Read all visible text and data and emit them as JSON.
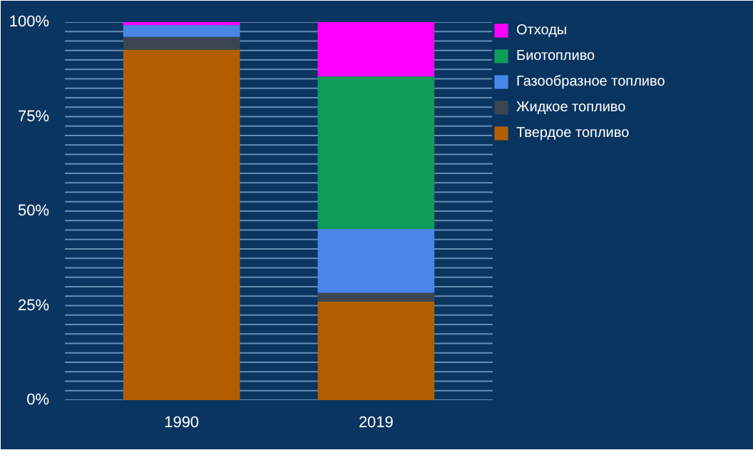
{
  "chart_data": {
    "type": "bar",
    "stacked": true,
    "categories": [
      "1990",
      "2019"
    ],
    "series": [
      {
        "name": "Твердое топливо",
        "color": "#b35f00",
        "values": [
          92.7,
          26.1
        ]
      },
      {
        "name": "Жидкое топливо",
        "color": "#3c4650",
        "values": [
          3.4,
          2.3
        ]
      },
      {
        "name": "Газообразное топливо",
        "color": "#4a86e8",
        "values": [
          3.1,
          16.9
        ]
      },
      {
        "name": "Биотопливо",
        "color": "#0f9d58",
        "values": [
          0,
          40.3
        ]
      },
      {
        "name": "Отходы",
        "color": "#ff00ff",
        "values": [
          0.8,
          14.4
        ]
      }
    ],
    "ylim": [
      0,
      100
    ],
    "yticks": [
      {
        "value": 0,
        "label": "0%"
      },
      {
        "value": 2.5,
        "label": null
      },
      {
        "value": 5,
        "label": null
      },
      {
        "value": 7.5,
        "label": null
      },
      {
        "value": 10,
        "label": null
      },
      {
        "value": 12.5,
        "label": null
      },
      {
        "value": 15,
        "label": null
      },
      {
        "value": 17.5,
        "label": null
      },
      {
        "value": 20,
        "label": null
      },
      {
        "value": 22.5,
        "label": null
      },
      {
        "value": 25,
        "label": "25%"
      },
      {
        "value": 27.5,
        "label": null
      },
      {
        "value": 30,
        "label": null
      },
      {
        "value": 32.5,
        "label": null
      },
      {
        "value": 35,
        "label": null
      },
      {
        "value": 37.5,
        "label": null
      },
      {
        "value": 40,
        "label": null
      },
      {
        "value": 42.5,
        "label": null
      },
      {
        "value": 45,
        "label": null
      },
      {
        "value": 47.5,
        "label": null
      },
      {
        "value": 50,
        "label": "50%"
      },
      {
        "value": 52.5,
        "label": null
      },
      {
        "value": 55,
        "label": null
      },
      {
        "value": 57.5,
        "label": null
      },
      {
        "value": 60,
        "label": null
      },
      {
        "value": 62.5,
        "label": null
      },
      {
        "value": 65,
        "label": null
      },
      {
        "value": 67.5,
        "label": null
      },
      {
        "value": 70,
        "label": null
      },
      {
        "value": 72.5,
        "label": null
      },
      {
        "value": 75,
        "label": "75%"
      },
      {
        "value": 77.5,
        "label": null
      },
      {
        "value": 80,
        "label": null
      },
      {
        "value": 82.5,
        "label": null
      },
      {
        "value": 85,
        "label": null
      },
      {
        "value": 87.5,
        "label": null
      },
      {
        "value": 90,
        "label": null
      },
      {
        "value": 92.5,
        "label": null
      },
      {
        "value": 95,
        "label": null
      },
      {
        "value": 97.5,
        "label": null
      },
      {
        "value": 100,
        "label": "100%"
      }
    ],
    "grid": "y",
    "legend": "right"
  }
}
